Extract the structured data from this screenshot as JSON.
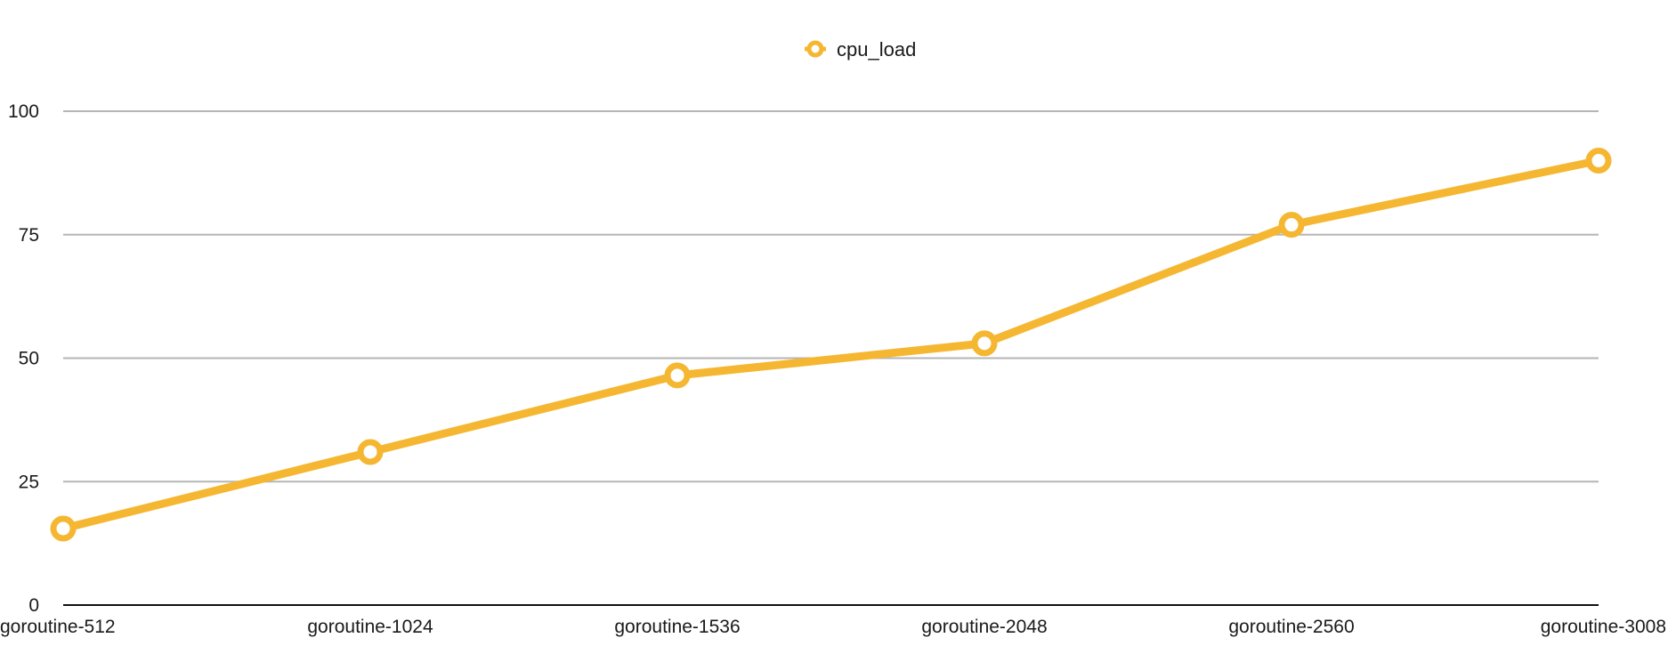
{
  "chart_data": {
    "type": "line",
    "categories": [
      "goroutine-512",
      "goroutine-1024",
      "goroutine-1536",
      "goroutine-2048",
      "goroutine-2560",
      "goroutine-3008"
    ],
    "series": [
      {
        "name": "cpu_load",
        "values": [
          15.5,
          31,
          46.5,
          53,
          77,
          90
        ]
      }
    ],
    "ylim": [
      0,
      100
    ],
    "yticks": [
      0,
      25,
      50,
      75,
      100
    ],
    "grid": true,
    "legend": "top-center",
    "colors": {
      "series": "#F5B731",
      "grid": "#b5b5b5",
      "axis": "#111111"
    }
  }
}
